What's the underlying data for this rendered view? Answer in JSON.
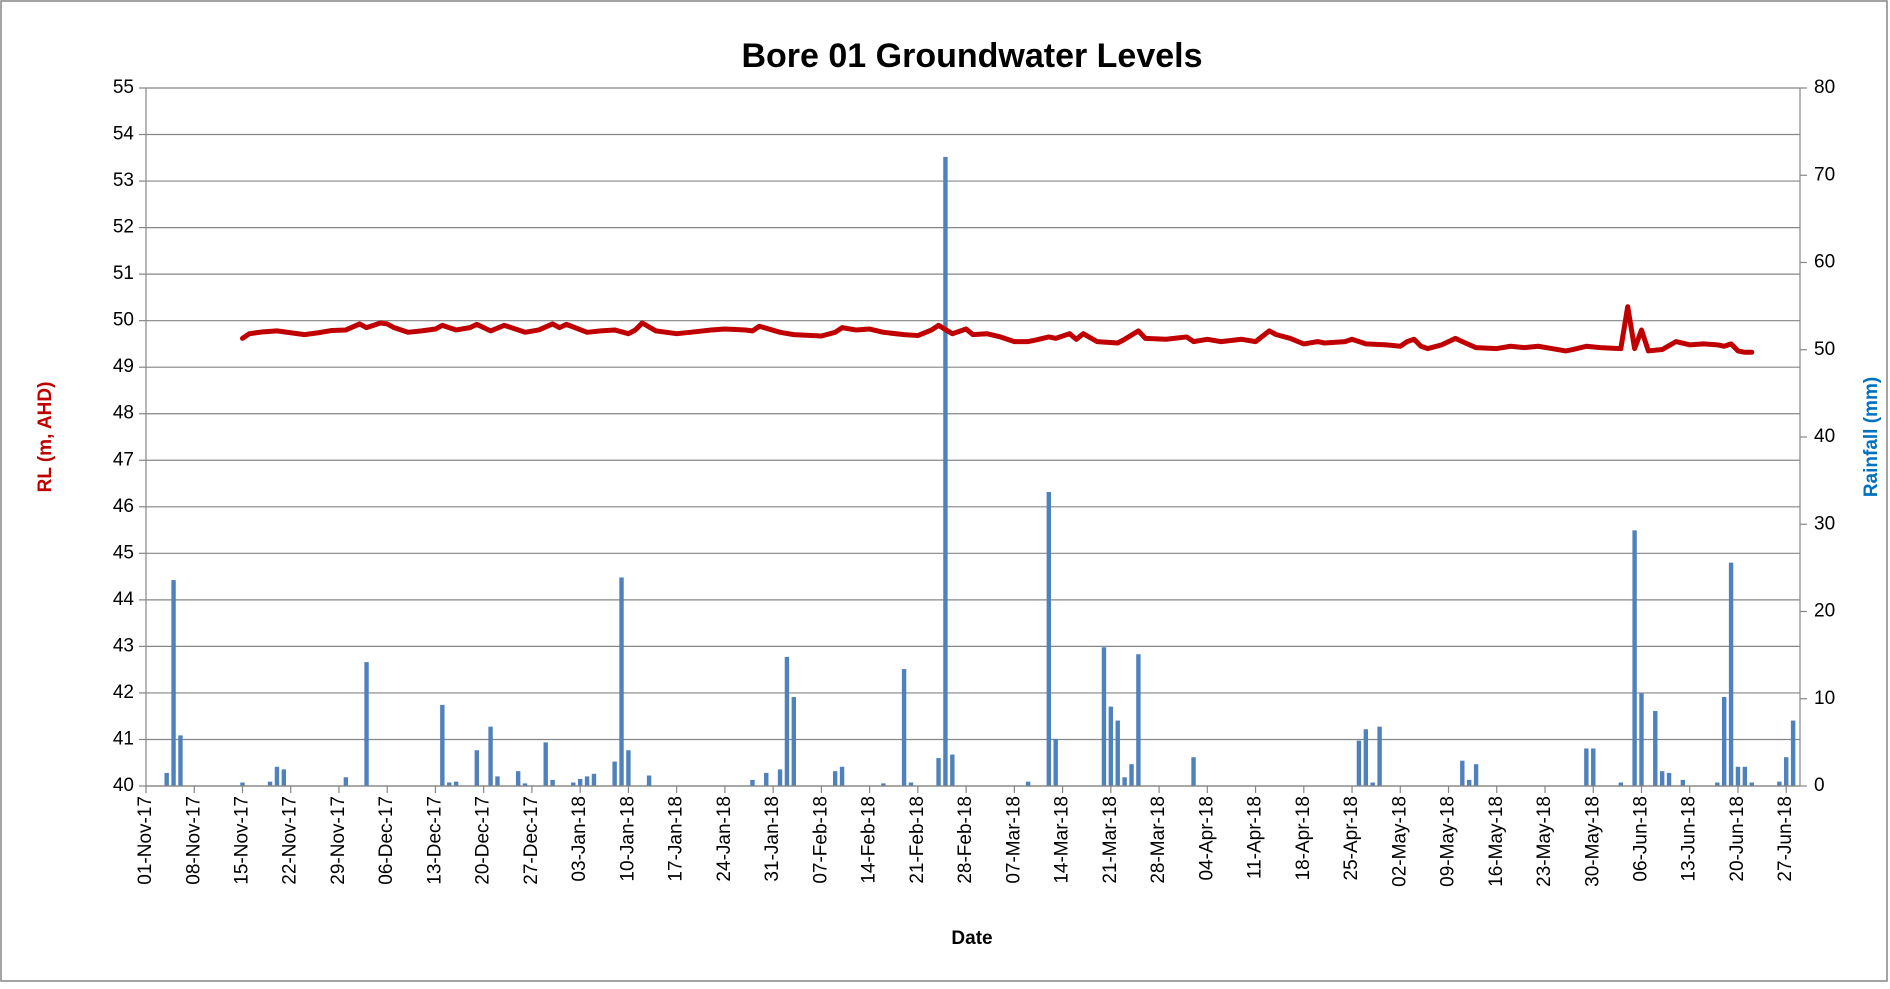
{
  "chart_data": {
    "type": "line",
    "title": "Bore 01 Groundwater Levels",
    "x_label": "Date",
    "y_label": "RL (m, AHD)",
    "y2_label": "Rainfall (mm)",
    "y_label_color": "#c00000",
    "y2_label_color": "#0070c0",
    "grid": true,
    "xlim": [
      "2017-11-01",
      "2018-06-29"
    ],
    "xticks": [
      {
        "value": "2017-11-01",
        "label": "01-Nov-17"
      },
      {
        "value": "2017-11-08",
        "label": "08-Nov-17"
      },
      {
        "value": "2017-11-15",
        "label": "15-Nov-17"
      },
      {
        "value": "2017-11-22",
        "label": "22-Nov-17"
      },
      {
        "value": "2017-11-29",
        "label": "29-Nov-17"
      },
      {
        "value": "2017-12-06",
        "label": "06-Dec-17"
      },
      {
        "value": "2017-12-13",
        "label": "13-Dec-17"
      },
      {
        "value": "2017-12-20",
        "label": "20-Dec-17"
      },
      {
        "value": "2017-12-27",
        "label": "27-Dec-17"
      },
      {
        "value": "2018-01-03",
        "label": "03-Jan-18"
      },
      {
        "value": "2018-01-10",
        "label": "10-Jan-18"
      },
      {
        "value": "2018-01-17",
        "label": "17-Jan-18"
      },
      {
        "value": "2018-01-24",
        "label": "24-Jan-18"
      },
      {
        "value": "2018-01-31",
        "label": "31-Jan-18"
      },
      {
        "value": "2018-02-07",
        "label": "07-Feb-18"
      },
      {
        "value": "2018-02-14",
        "label": "14-Feb-18"
      },
      {
        "value": "2018-02-21",
        "label": "21-Feb-18"
      },
      {
        "value": "2018-02-28",
        "label": "28-Feb-18"
      },
      {
        "value": "2018-03-07",
        "label": "07-Mar-18"
      },
      {
        "value": "2018-03-14",
        "label": "14-Mar-18"
      },
      {
        "value": "2018-03-21",
        "label": "21-Mar-18"
      },
      {
        "value": "2018-03-28",
        "label": "28-Mar-18"
      },
      {
        "value": "2018-04-04",
        "label": "04-Apr-18"
      },
      {
        "value": "2018-04-11",
        "label": "11-Apr-18"
      },
      {
        "value": "2018-04-18",
        "label": "18-Apr-18"
      },
      {
        "value": "2018-04-25",
        "label": "25-Apr-18"
      },
      {
        "value": "2018-05-02",
        "label": "02-May-18"
      },
      {
        "value": "2018-05-09",
        "label": "09-May-18"
      },
      {
        "value": "2018-05-16",
        "label": "16-May-18"
      },
      {
        "value": "2018-05-23",
        "label": "23-May-18"
      },
      {
        "value": "2018-05-30",
        "label": "30-May-18"
      },
      {
        "value": "2018-06-06",
        "label": "06-Jun-18"
      },
      {
        "value": "2018-06-13",
        "label": "13-Jun-18"
      },
      {
        "value": "2018-06-20",
        "label": "20-Jun-18"
      },
      {
        "value": "2018-06-27",
        "label": "27-Jun-18"
      }
    ],
    "ylim": [
      40,
      55
    ],
    "yticks": [
      40,
      41,
      42,
      43,
      44,
      45,
      46,
      47,
      48,
      49,
      50,
      51,
      52,
      53,
      54,
      55
    ],
    "y2lim": [
      0,
      80
    ],
    "y2ticks": [
      0,
      10,
      20,
      30,
      40,
      50,
      60,
      70,
      80
    ],
    "series": [
      {
        "type": "line",
        "color": "#c00000",
        "axis": "y",
        "x": [
          "2017-11-15",
          "2017-11-16",
          "2017-11-18",
          "2017-11-20",
          "2017-11-22",
          "2017-11-24",
          "2017-11-26",
          "2017-11-28",
          "2017-11-30",
          "2017-12-02",
          "2017-12-03",
          "2017-12-04",
          "2017-12-05",
          "2017-12-06",
          "2017-12-07",
          "2017-12-09",
          "2017-12-11",
          "2017-12-13",
          "2017-12-14",
          "2017-12-16",
          "2017-12-18",
          "2017-12-19",
          "2017-12-21",
          "2017-12-23",
          "2017-12-26",
          "2017-12-28",
          "2017-12-30",
          "2017-12-31",
          "2018-01-01",
          "2018-01-04",
          "2018-01-06",
          "2018-01-08",
          "2018-01-10",
          "2018-01-11",
          "2018-01-12",
          "2018-01-14",
          "2018-01-17",
          "2018-01-19",
          "2018-01-22",
          "2018-01-24",
          "2018-01-27",
          "2018-01-28",
          "2018-01-29",
          "2018-02-01",
          "2018-02-03",
          "2018-02-07",
          "2018-02-09",
          "2018-02-10",
          "2018-02-12",
          "2018-02-14",
          "2018-02-16",
          "2018-02-19",
          "2018-02-21",
          "2018-02-23",
          "2018-02-24",
          "2018-02-26",
          "2018-02-28",
          "2018-03-01",
          "2018-03-03",
          "2018-03-05",
          "2018-03-07",
          "2018-03-09",
          "2018-03-10",
          "2018-03-12",
          "2018-03-13",
          "2018-03-15",
          "2018-03-16",
          "2018-03-17",
          "2018-03-19",
          "2018-03-22",
          "2018-03-23",
          "2018-03-25",
          "2018-03-26",
          "2018-03-29",
          "2018-04-01",
          "2018-04-02",
          "2018-04-04",
          "2018-04-06",
          "2018-04-09",
          "2018-04-11",
          "2018-04-13",
          "2018-04-14",
          "2018-04-16",
          "2018-04-18",
          "2018-04-20",
          "2018-04-21",
          "2018-04-24",
          "2018-04-25",
          "2018-04-27",
          "2018-04-30",
          "2018-05-02",
          "2018-05-03",
          "2018-05-04",
          "2018-05-05",
          "2018-05-06",
          "2018-05-08",
          "2018-05-10",
          "2018-05-11",
          "2018-05-13",
          "2018-05-16",
          "2018-05-18",
          "2018-05-20",
          "2018-05-22",
          "2018-05-24",
          "2018-05-26",
          "2018-05-27",
          "2018-05-29",
          "2018-05-31",
          "2018-06-03",
          "2018-06-04",
          "2018-06-05",
          "2018-06-06",
          "2018-06-07",
          "2018-06-09",
          "2018-06-11",
          "2018-06-13",
          "2018-06-15",
          "2018-06-17",
          "2018-06-18",
          "2018-06-19",
          "2018-06-20",
          "2018-06-21",
          "2018-06-22"
        ],
        "values": [
          49.62,
          49.72,
          49.76,
          49.78,
          49.74,
          49.7,
          49.74,
          49.79,
          49.8,
          49.93,
          49.85,
          49.9,
          49.95,
          49.93,
          49.85,
          49.75,
          49.78,
          49.82,
          49.9,
          49.8,
          49.85,
          49.92,
          49.78,
          49.9,
          49.75,
          49.8,
          49.93,
          49.85,
          49.92,
          49.75,
          49.78,
          49.8,
          49.72,
          49.8,
          49.95,
          49.78,
          49.72,
          49.75,
          49.8,
          49.82,
          49.8,
          49.78,
          49.88,
          49.75,
          49.7,
          49.67,
          49.75,
          49.85,
          49.8,
          49.82,
          49.75,
          49.7,
          49.68,
          49.8,
          49.9,
          49.72,
          49.82,
          49.7,
          49.72,
          49.65,
          49.55,
          49.55,
          49.58,
          49.65,
          49.62,
          49.72,
          49.6,
          49.72,
          49.55,
          49.52,
          49.6,
          49.78,
          49.62,
          49.6,
          49.65,
          49.55,
          49.6,
          49.55,
          49.6,
          49.55,
          49.78,
          49.7,
          49.62,
          49.5,
          49.55,
          49.52,
          49.55,
          49.6,
          49.5,
          49.48,
          49.45,
          49.55,
          49.6,
          49.45,
          49.4,
          49.48,
          49.62,
          49.55,
          49.42,
          49.4,
          49.45,
          49.42,
          49.45,
          49.4,
          49.35,
          49.38,
          49.45,
          49.42,
          49.4,
          50.3,
          49.4,
          49.8,
          49.35,
          49.38,
          49.55,
          49.48,
          49.5,
          49.48,
          49.45,
          49.5,
          49.35,
          49.32,
          49.32
        ]
      },
      {
        "type": "bar",
        "color": "#4f81bd",
        "axis": "y2",
        "x": [
          "2017-11-04",
          "2017-11-05",
          "2017-11-06",
          "2017-11-15",
          "2017-11-19",
          "2017-11-20",
          "2017-11-21",
          "2017-11-30",
          "2017-12-03",
          "2017-12-14",
          "2017-12-15",
          "2017-12-16",
          "2017-12-19",
          "2017-12-21",
          "2017-12-22",
          "2017-12-25",
          "2017-12-26",
          "2017-12-29",
          "2017-12-30",
          "2018-01-02",
          "2018-01-03",
          "2018-01-04",
          "2018-01-05",
          "2018-01-08",
          "2018-01-09",
          "2018-01-10",
          "2018-01-13",
          "2018-01-28",
          "2018-01-30",
          "2018-02-01",
          "2018-02-02",
          "2018-02-03",
          "2018-02-09",
          "2018-02-10",
          "2018-02-16",
          "2018-02-19",
          "2018-02-20",
          "2018-02-24",
          "2018-02-25",
          "2018-02-26",
          "2018-03-09",
          "2018-03-12",
          "2018-03-13",
          "2018-03-20",
          "2018-03-21",
          "2018-03-22",
          "2018-03-23",
          "2018-03-24",
          "2018-03-25",
          "2018-04-02",
          "2018-04-26",
          "2018-04-27",
          "2018-04-28",
          "2018-04-29",
          "2018-05-11",
          "2018-05-12",
          "2018-05-13",
          "2018-05-29",
          "2018-05-30",
          "2018-06-03",
          "2018-06-05",
          "2018-06-06",
          "2018-06-08",
          "2018-06-09",
          "2018-06-10",
          "2018-06-12",
          "2018-06-17",
          "2018-06-18",
          "2018-06-19",
          "2018-06-20",
          "2018-06-21",
          "2018-06-22",
          "2018-06-26",
          "2018-06-27",
          "2018-06-28"
        ],
        "values": [
          1.5,
          23.6,
          5.8,
          0.4,
          0.5,
          2.2,
          1.9,
          1.0,
          14.2,
          9.3,
          0.4,
          0.5,
          4.1,
          6.8,
          1.1,
          1.7,
          0.3,
          5.0,
          0.7,
          0.4,
          0.8,
          1.1,
          1.4,
          2.8,
          23.9,
          4.1,
          1.2,
          0.7,
          1.5,
          1.9,
          14.8,
          10.2,
          1.7,
          2.2,
          0.3,
          13.4,
          0.4,
          3.2,
          72.1,
          3.6,
          0.5,
          33.7,
          5.4,
          15.9,
          9.1,
          7.5,
          1.0,
          2.5,
          15.1,
          3.3,
          5.2,
          6.5,
          0.4,
          6.8,
          2.9,
          0.7,
          2.5,
          4.3,
          4.3,
          0.4,
          29.3,
          10.6,
          8.6,
          1.7,
          1.5,
          0.7,
          0.4,
          10.2,
          25.6,
          2.2,
          2.2,
          0.4,
          0.5,
          3.3,
          7.5
        ]
      }
    ]
  }
}
